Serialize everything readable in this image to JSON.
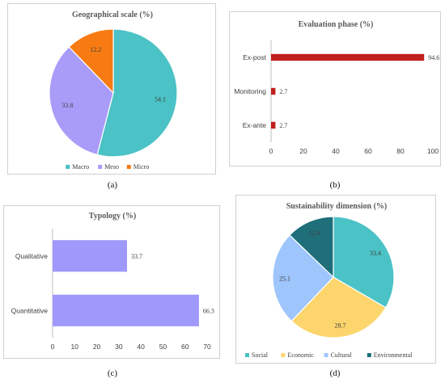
{
  "captions": [
    "(a)",
    "(b)",
    "(c)",
    "(d)"
  ],
  "chart_data": [
    {
      "type": "pie",
      "title": "Geographical scale (%)",
      "labels": [
        "Macro",
        "Meso",
        "Micro"
      ],
      "values": [
        54.1,
        33.8,
        12.2
      ],
      "value_labels": [
        "54.1",
        "33.8",
        "12.2"
      ],
      "colors": [
        "#4bc2c5",
        "#a99cf8",
        "#f77b12"
      ],
      "legend": "bottom"
    },
    {
      "type": "bar",
      "orientation": "horizontal",
      "title": "Evaluation phase (%)",
      "categories": [
        "Ex-post",
        "Monitoring",
        "Ex-ante"
      ],
      "values": [
        94.6,
        2.7,
        2.7
      ],
      "value_labels": [
        "94.6",
        "2.7",
        "2.7"
      ],
      "xlim": [
        0,
        100
      ],
      "ticks": [
        "0",
        "20",
        "40",
        "60",
        "80",
        "100"
      ],
      "color": "#c0201d"
    },
    {
      "type": "bar",
      "orientation": "horizontal",
      "title": "Typology (%)",
      "categories": [
        "Qualitative",
        "Quantitative"
      ],
      "values": [
        33.7,
        66.3
      ],
      "value_labels": [
        "33.7",
        "66.3"
      ],
      "xlim": [
        0,
        70
      ],
      "ticks": [
        "0",
        "10",
        "20",
        "30",
        "40",
        "50",
        "60",
        "70"
      ],
      "color": "#9f99fb"
    },
    {
      "type": "pie",
      "title": "Sustainability dimension (%)",
      "labels": [
        "Social",
        "Economic",
        "Cultural",
        "Environmental"
      ],
      "values": [
        33.4,
        28.7,
        25.1,
        12.8
      ],
      "value_labels": [
        "33.4",
        "28.7",
        "25.1",
        "12.8"
      ],
      "colors": [
        "#4bc2c5",
        "#fdd56d",
        "#9ec5fc",
        "#1e6f7a"
      ],
      "legend": "bottom"
    }
  ]
}
